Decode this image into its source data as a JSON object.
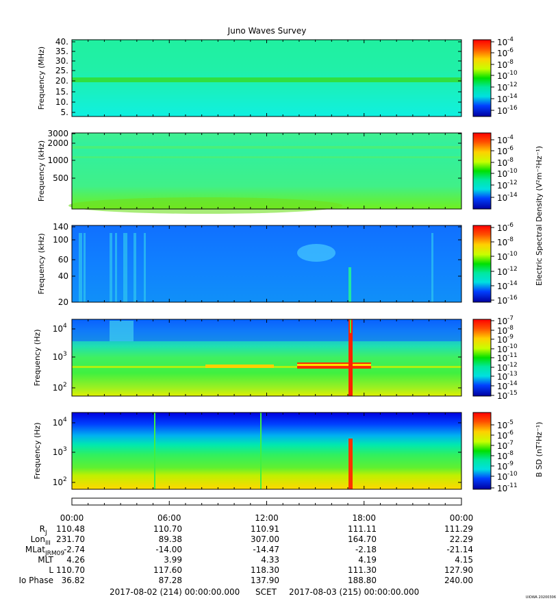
{
  "title": "Juno Waves Survey",
  "corner_note": "UIOWA 20200306",
  "panels": [
    {
      "ylabel": "Frequency (MHz)",
      "yticks": [
        "40.",
        "35.",
        "30.",
        "25.",
        "20.",
        "15.",
        "10.",
        "5."
      ],
      "cbar_ticks": [
        "-4",
        "-6",
        "-8",
        "-10",
        "-12",
        "-14",
        "-16"
      ]
    },
    {
      "ylabel": "Frequency (kHz)",
      "yticks": [
        "3000",
        "2000",
        "1000",
        "500"
      ],
      "cbar_ticks": [
        "-4",
        "-6",
        "-8",
        "-10",
        "-12",
        "-14"
      ]
    },
    {
      "ylabel": "Frequency (kHz)",
      "yticks": [
        "140",
        "100",
        "60",
        "40",
        "20"
      ],
      "cbar_ticks": [
        "-6",
        "-8",
        "-10",
        "-12",
        "-14",
        "-16"
      ]
    },
    {
      "ylabel": "Frequency (Hz)",
      "yticks": [
        "4",
        "3",
        "2"
      ],
      "cbar_ticks": [
        "-7",
        "-8",
        "-9",
        "-10",
        "-11",
        "-12",
        "-13",
        "-14",
        "-15"
      ]
    },
    {
      "ylabel": "Frequency (Hz)",
      "yticks": [
        "4",
        "3",
        "2"
      ],
      "cbar_ticks": [
        "-5",
        "-6",
        "-7",
        "-8",
        "-9",
        "-10",
        "-11"
      ]
    }
  ],
  "cbar_label_electric": "Electric Spectral Density (V",
  "cbar_label_magnetic": "B SD (nT",
  "xticks": [
    "00:00",
    "06:00",
    "12:00",
    "18:00",
    "00:00"
  ],
  "ephemeris": [
    {
      "label": "R",
      "sub": "J",
      "values": [
        "110.48",
        "110.70",
        "110.91",
        "111.11",
        "111.29"
      ]
    },
    {
      "label": "Lon",
      "sub": "III",
      "values": [
        "231.70",
        "89.38",
        "307.00",
        "164.70",
        "22.29"
      ]
    },
    {
      "label": "MLat",
      "sub": "JRM09",
      "values": [
        "-2.74",
        "-14.00",
        "-14.47",
        "-2.18",
        "-21.14"
      ]
    },
    {
      "label": "MLT",
      "sub": "",
      "values": [
        "4.26",
        "3.99",
        "4.33",
        "4.19",
        "4.15"
      ]
    },
    {
      "label": "L",
      "sub": "",
      "values": [
        "110.70",
        "117.60",
        "118.30",
        "111.30",
        "127.90"
      ]
    },
    {
      "label": "Io Phase",
      "sub": "",
      "values": [
        "36.82",
        "87.28",
        "137.90",
        "188.80",
        "240.00"
      ]
    }
  ],
  "footer": {
    "start": "2017-08-02 (214) 00:00:00.000",
    "mid": "SCET",
    "end": "2017-08-03 (215) 00:00:00.000"
  },
  "chart_data": {
    "type": "heatmap",
    "title": "Juno Waves Survey",
    "x_range": [
      "2017-08-02 00:00",
      "2017-08-03 00:00"
    ],
    "x_tick_labels": [
      "00:00",
      "06:00",
      "12:00",
      "18:00",
      "00:00"
    ],
    "colormap": "rainbow",
    "panels": [
      {
        "ylabel": "Frequency (MHz)",
        "ylim": [
          4,
          41
        ],
        "scale": "linear",
        "cbar_range_log10": [
          -16,
          -4
        ],
        "features": [
          "uniform background ~1e-12",
          "band near 21 MHz ~1e-11"
        ]
      },
      {
        "ylabel": "Frequency (kHz)",
        "ylim": [
          140,
          3000
        ],
        "scale": "log",
        "cbar_range_log10": [
          -15,
          -4
        ],
        "features": [
          "bands near 1600 and 1200 kHz",
          "enhancement below 200 kHz"
        ]
      },
      {
        "ylabel": "Frequency (kHz)",
        "ylim": [
          20,
          140
        ],
        "scale": "log",
        "cbar_range_log10": [
          -16,
          -6
        ],
        "features": [
          "bursts at 00:30-01:00 and 03:00-04:00",
          "patch near 70 kHz at 15:00",
          "spike at 17:10 below 40 kHz"
        ]
      },
      {
        "ylabel": "Frequency (Hz)",
        "ylim": [
          50,
          20000
        ],
        "scale": "log",
        "cbar_range_log10": [
          -15,
          -7
        ],
        "features": [
          "line near 550 Hz",
          "strong emission 14:00-18:30 at 600 Hz",
          "broadband spike at 17:10"
        ]
      },
      {
        "ylabel": "Frequency (Hz)",
        "ylim": [
          50,
          20000
        ],
        "scale": "log",
        "cbar_range_log10": [
          -11,
          -5
        ],
        "features": [
          "intensity rises below 200 Hz",
          "spikes at 05:00, 11:45, 17:10"
        ]
      }
    ]
  },
  "colors": {
    "hot": "#ff0000",
    "warm": "#ffd000",
    "mid": "#00e000",
    "cool": "#00e0e0",
    "cold": "#0000e0",
    "deep": "#0000a0"
  }
}
